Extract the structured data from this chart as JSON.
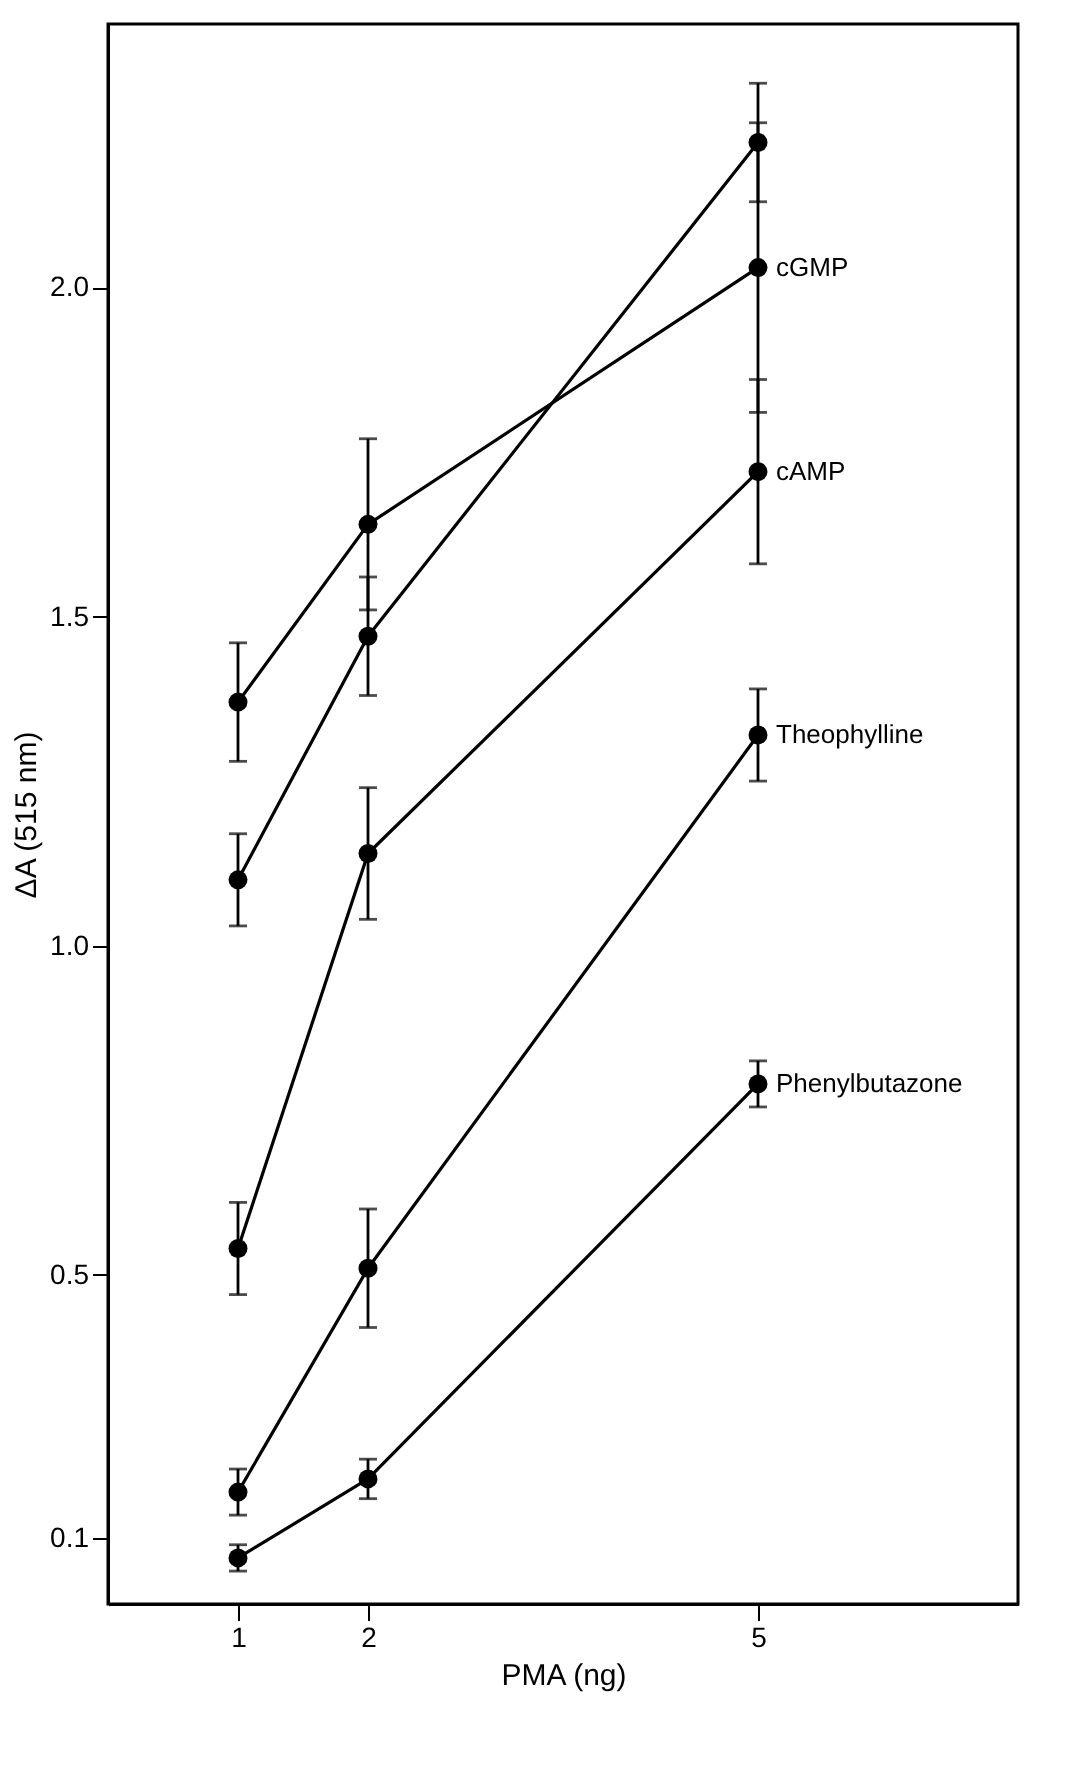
{
  "chart_data": {
    "type": "line",
    "xlabel": "PMA (ng)",
    "ylabel": "ΔA (515 nm)",
    "x": [
      1,
      2,
      5
    ],
    "xlim": [
      0,
      7
    ],
    "xticks": [
      1,
      2,
      5
    ],
    "ylim": [
      0,
      2.4
    ],
    "yticks": [
      {
        "value": 0.1,
        "label": "0.1"
      },
      {
        "value": 0.5,
        "label": "0.5"
      },
      {
        "value": 1.0,
        "label": "1.0"
      },
      {
        "value": 1.5,
        "label": "1.5"
      },
      {
        "value": 2.0,
        "label": "2.0"
      }
    ],
    "series": [
      {
        "color": "#000000",
        "values": [
          1.1,
          1.47,
          2.22
        ],
        "errors": [
          0.07,
          0.09,
          0.09
        ]
      },
      {
        "name": "cGMP",
        "color": "#000000",
        "values": [
          1.37,
          1.64,
          2.03
        ],
        "errors": [
          0.09,
          0.13,
          0.22
        ]
      },
      {
        "name": "cAMP",
        "color": "#000000",
        "values": [
          0.54,
          1.14,
          1.72
        ],
        "errors": [
          0.07,
          0.1,
          0.14
        ]
      },
      {
        "name": "Theophylline",
        "color": "#000000",
        "values": [
          0.17,
          0.51,
          1.32
        ],
        "errors": [
          0.035,
          0.09,
          0.07
        ]
      },
      {
        "name": "Phenylbutazone",
        "color": "#000000",
        "values": [
          0.07,
          0.19,
          0.79
        ],
        "errors": [
          0.02,
          0.03,
          0.035
        ]
      }
    ],
    "marker": "circle",
    "line_style": "solid"
  }
}
